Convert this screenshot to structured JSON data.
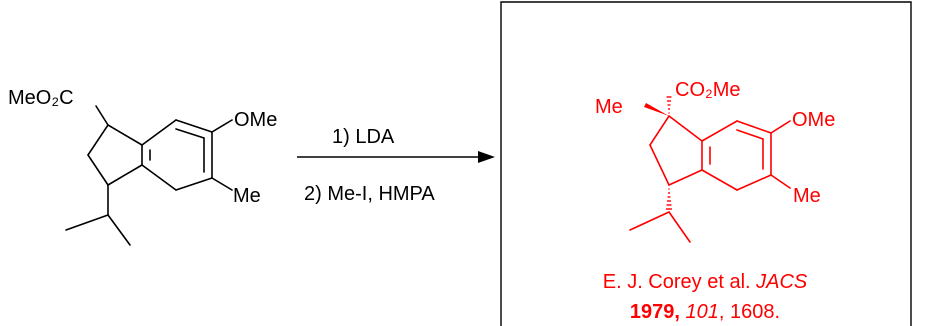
{
  "reactant": {
    "ester_label": "MeO₂C",
    "methoxy_label": "OMe",
    "methyl_label": "Me"
  },
  "reagents": {
    "step1": "1) LDA",
    "step2": "2) Me-I, HMPA"
  },
  "product": {
    "ester_label": "CO₂Me",
    "quat_methyl_label": "Me",
    "methoxy_label": "OMe",
    "methyl_label": "Me"
  },
  "citation": {
    "line1": "E. J. Corey et al. JACS",
    "year": "1979,",
    "volume": "101",
    "pages": ", 1608."
  },
  "colors": {
    "product": "#ff0000",
    "reactant": "#000000"
  }
}
